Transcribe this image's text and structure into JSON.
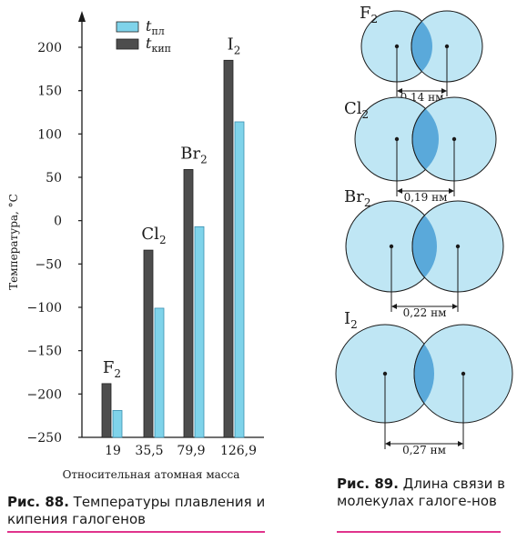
{
  "chart_data": [
    {
      "type": "bar",
      "title": "",
      "xlabel": "Относительная атомная масса",
      "ylabel": "Температура, °С",
      "ylim": [
        -250,
        200
      ],
      "yticks": [
        -250,
        -200,
        -150,
        -100,
        -50,
        0,
        50,
        100,
        150,
        200
      ],
      "ytick_labels": [
        "−250",
        "−200",
        "−150",
        "−100",
        "−50",
        "0",
        "50",
        "100",
        "150",
        "200"
      ],
      "categories": [
        "19",
        "35,5",
        "79,9",
        "126,9"
      ],
      "element_labels": [
        {
          "base": "F",
          "sub": "2"
        },
        {
          "base": "Cl",
          "sub": "2"
        },
        {
          "base": "Br",
          "sub": "2"
        },
        {
          "base": "I",
          "sub": "2"
        }
      ],
      "series": [
        {
          "name": "t",
          "name_sub": "кип",
          "color": "#4d4d4d",
          "values": [
            -188,
            -34,
            59,
            185
          ]
        },
        {
          "name": "t",
          "name_sub": "пл",
          "color": "#7fd3ea",
          "values": [
            -219,
            -101,
            -7,
            114
          ]
        }
      ],
      "legend": "top-left"
    },
    {
      "type": "diagram",
      "molecules": [
        {
          "base": "F",
          "sub": "2",
          "bond_label": "0,14 нм"
        },
        {
          "base": "Cl",
          "sub": "2",
          "bond_label": "0,19 нм"
        },
        {
          "base": "Br",
          "sub": "2",
          "bond_label": "0,22 нм"
        },
        {
          "base": "I",
          "sub": "2",
          "bond_label": "0,27 нм"
        }
      ],
      "colors": {
        "atom": "#bfe6f4",
        "overlap": "#5aa9da",
        "stroke": "#1a1a1a"
      }
    }
  ],
  "captions": {
    "fig88": {
      "label": "Рис. 88.",
      "text": " Температуры плавления и кипения галогенов"
    },
    "fig89": {
      "label": "Рис. 89.",
      "text": " Длина связи в молекулах галоге-нов"
    }
  }
}
